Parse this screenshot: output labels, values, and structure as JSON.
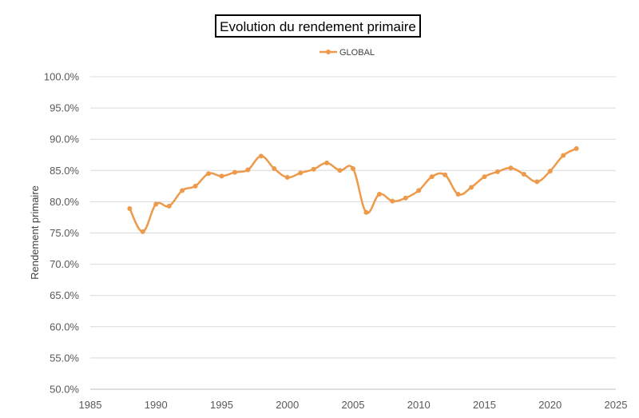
{
  "chart_data": {
    "type": "line",
    "title": "Evolution du rendement primaire",
    "xlabel": "",
    "ylabel": "Rendement primaire",
    "xlim": [
      1985,
      2025
    ],
    "ylim": [
      0.5,
      1.0
    ],
    "x_ticks": [
      "1985",
      "1990",
      "1995",
      "2000",
      "2005",
      "2010",
      "2015",
      "2020",
      "2025"
    ],
    "y_ticks": [
      "50.0%",
      "55.0%",
      "60.0%",
      "65.0%",
      "70.0%",
      "75.0%",
      "80.0%",
      "85.0%",
      "90.0%",
      "95.0%",
      "100.0%"
    ],
    "grid": true,
    "legend_position": "top-center",
    "series": [
      {
        "name": "GLOBAL",
        "color": "#ED9A4B",
        "x": [
          1988,
          1989,
          1990,
          1991,
          1992,
          1993,
          1994,
          1995,
          1996,
          1997,
          1998,
          1999,
          2000,
          2001,
          2002,
          2003,
          2004,
          2005,
          2006,
          2007,
          2008,
          2009,
          2010,
          2011,
          2012,
          2013,
          2014,
          2015,
          2016,
          2017,
          2018,
          2019,
          2020,
          2021,
          2022
        ],
        "values": [
          0.789,
          0.752,
          0.796,
          0.793,
          0.818,
          0.825,
          0.845,
          0.841,
          0.847,
          0.851,
          0.873,
          0.853,
          0.839,
          0.846,
          0.852,
          0.862,
          0.85,
          0.853,
          0.783,
          0.812,
          0.801,
          0.806,
          0.818,
          0.84,
          0.843,
          0.812,
          0.823,
          0.84,
          0.848,
          0.854,
          0.844,
          0.832,
          0.849,
          0.874,
          0.885
        ]
      }
    ]
  }
}
